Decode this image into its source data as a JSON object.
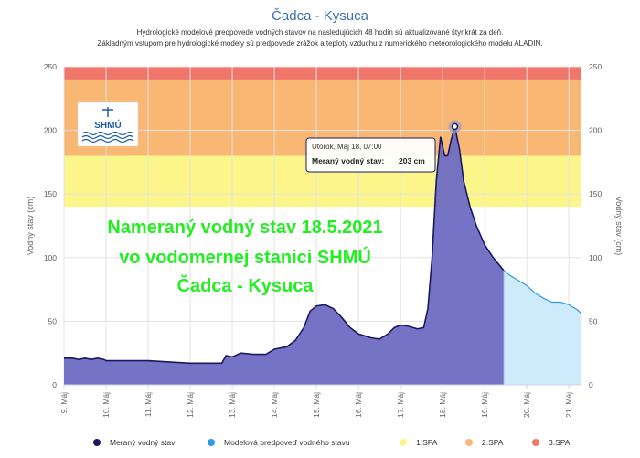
{
  "chart_data": {
    "type": "area",
    "title": "Čadca - Kysuca",
    "subtitle_lines": [
      "Hydrologické modelové predpovede vodných stavov na nasledujúcich 48 hodín sú aktualizované štyrikrát za deň.",
      "Základným vstupom pre hydrologické modely sú predpovede zrážok a teploty vzduchu z numerického meteorologického modelu ALADIN."
    ],
    "ylabel_left": "Vodný stav (cm)",
    "ylabel_right": "Vodný stav (cm)",
    "ylim": [
      0,
      250
    ],
    "yticks": [
      0,
      50,
      100,
      150,
      200,
      250
    ],
    "xlim": [
      9,
      21.3
    ],
    "x_ticks": [
      9,
      10,
      11,
      12,
      13,
      14,
      15,
      16,
      17,
      18,
      19,
      20,
      21
    ],
    "x_tick_labels": [
      "9. Máj",
      "10. Máj",
      "11. Máj",
      "12. Máj",
      "13. Máj",
      "14. Máj",
      "15. Máj",
      "16. Máj",
      "17. Máj",
      "18. Máj",
      "19. Máj",
      "20. Máj",
      "21. Máj"
    ],
    "bands": [
      {
        "name": "1.SPA",
        "from": 140,
        "to": 180,
        "color": "#fbf58a"
      },
      {
        "name": "2.SPA",
        "from": 180,
        "to": 240,
        "color": "#f8b772"
      },
      {
        "name": "3.SPA",
        "from": 240,
        "to": 250,
        "color": "#f0766a"
      }
    ],
    "series": [
      {
        "name": "Meraný vodný stav",
        "line_color": "#1a1a5e",
        "fill_color": "#6e6cc2",
        "points": [
          [
            9.0,
            21
          ],
          [
            9.2,
            21
          ],
          [
            9.35,
            20
          ],
          [
            9.5,
            21
          ],
          [
            9.65,
            20
          ],
          [
            9.8,
            21
          ],
          [
            9.95,
            20
          ],
          [
            10.0,
            19
          ],
          [
            10.5,
            19
          ],
          [
            11.0,
            19
          ],
          [
            11.5,
            18
          ],
          [
            12.0,
            17
          ],
          [
            12.5,
            17
          ],
          [
            12.75,
            17
          ],
          [
            12.85,
            23
          ],
          [
            13.0,
            22
          ],
          [
            13.2,
            25
          ],
          [
            13.5,
            24
          ],
          [
            13.8,
            24
          ],
          [
            14.0,
            28
          ],
          [
            14.3,
            30
          ],
          [
            14.5,
            35
          ],
          [
            14.7,
            45
          ],
          [
            14.85,
            58
          ],
          [
            15.0,
            62
          ],
          [
            15.2,
            63
          ],
          [
            15.4,
            60
          ],
          [
            15.6,
            53
          ],
          [
            15.8,
            45
          ],
          [
            16.0,
            40
          ],
          [
            16.3,
            37
          ],
          [
            16.5,
            36
          ],
          [
            16.7,
            40
          ],
          [
            16.85,
            45
          ],
          [
            17.0,
            47
          ],
          [
            17.2,
            46
          ],
          [
            17.4,
            44
          ],
          [
            17.55,
            45
          ],
          [
            17.65,
            60
          ],
          [
            17.75,
            100
          ],
          [
            17.85,
            160
          ],
          [
            17.95,
            195
          ],
          [
            18.05,
            180
          ],
          [
            18.12,
            180
          ],
          [
            18.2,
            192
          ],
          [
            18.29,
            203
          ],
          [
            18.4,
            185
          ],
          [
            18.5,
            160
          ],
          [
            18.65,
            140
          ],
          [
            18.8,
            125
          ],
          [
            19.0,
            110
          ],
          [
            19.2,
            100
          ],
          [
            19.45,
            90
          ]
        ]
      },
      {
        "name": "Modelová predpoveď vodného stavu",
        "line_color": "#2e9be0",
        "fill_color": "#cdebfb",
        "points": [
          [
            19.45,
            90
          ],
          [
            19.6,
            86
          ],
          [
            19.8,
            82
          ],
          [
            20.0,
            78
          ],
          [
            20.2,
            72
          ],
          [
            20.4,
            68
          ],
          [
            20.6,
            65
          ],
          [
            20.8,
            65
          ],
          [
            21.0,
            63
          ],
          [
            21.2,
            59
          ],
          [
            21.3,
            56
          ]
        ]
      }
    ],
    "legend": [
      {
        "name": "Meraný vodný stav",
        "color": "#1a1a5e"
      },
      {
        "name": "Modelová predpoveď vodného stavu",
        "color": "#2e9be0"
      },
      {
        "name": "1.SPA",
        "color": "#fbf58a"
      },
      {
        "name": "2.SPA",
        "color": "#f8b772"
      },
      {
        "name": "3.SPA",
        "color": "#f0766a"
      }
    ],
    "legend_position": "bottom",
    "tooltip": {
      "x": 18.29,
      "y": 203,
      "header": "Utorok, Máj 18, 07:00",
      "label": "Meraný vodný stav:",
      "value": "203 cm"
    },
    "annotation_lines": [
      "Nameraný vodný stav 18.5.2021",
      "vo vodomernej stanici SHMÚ",
      "Čadca - Kysuca"
    ],
    "annotation_color": "#22ee22",
    "logo_text": "SHMÚ"
  }
}
